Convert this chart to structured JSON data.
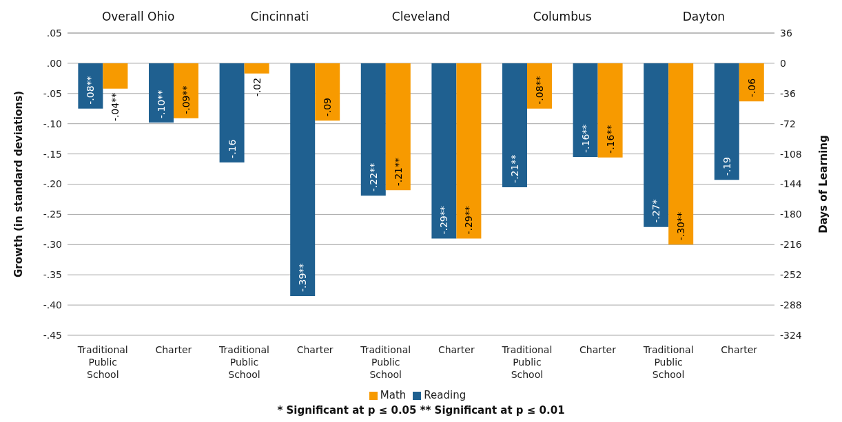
{
  "chart_data": {
    "type": "bar",
    "categories": [
      "Traditional Public School",
      "Charter",
      "Traditional Public School",
      "Charter",
      "Traditional Public School",
      "Charter",
      "Traditional Public School",
      "Charter",
      "Traditional Public School",
      "Charter"
    ],
    "series": [
      {
        "name": "Reading",
        "color": "#1f6090",
        "values": [
          -0.075,
          -0.098,
          -0.164,
          -0.385,
          -0.219,
          -0.29,
          -0.205,
          -0.155,
          -0.271,
          -0.193
        ],
        "value_labels": [
          "-.08**",
          "-.10**",
          "-.16",
          "-.39**",
          "-.22**",
          "-.29**",
          "-.21**",
          "-.16**",
          "-.27*",
          "-.19"
        ]
      },
      {
        "name": "Math",
        "color": "#f79a00",
        "values": [
          -0.042,
          -0.091,
          -0.017,
          -0.095,
          -0.21,
          -0.29,
          -0.075,
          -0.156,
          -0.3,
          -0.063
        ],
        "value_labels": [
          "-.04**",
          "-.09**",
          "-.02",
          "-.09",
          "-.21**",
          "-.29**",
          "-.08**",
          "-.16**",
          "-.30**",
          "-.06"
        ]
      }
    ],
    "ylabel": "Growth (in standard deviations)",
    "y2label": "Days of Learning",
    "ylim": [
      -0.45,
      0.05
    ],
    "yticks": [
      {
        "value": 0.05,
        "label": ".05"
      },
      {
        "value": 0,
        "label": ".00"
      },
      {
        "value": -0.05,
        "label": "-.05"
      },
      {
        "value": -0.1,
        "label": "-.10"
      },
      {
        "value": -0.15,
        "label": "-.15"
      },
      {
        "value": -0.2,
        "label": "-.20"
      },
      {
        "value": -0.25,
        "label": "-.25"
      },
      {
        "value": -0.3,
        "label": "-.30"
      },
      {
        "value": -0.35,
        "label": "-.35"
      },
      {
        "value": -0.4,
        "label": "-.40"
      },
      {
        "value": -0.45,
        "label": "-.45"
      }
    ],
    "y2lim": [
      -324,
      36
    ],
    "y2ticks": [
      36,
      0,
      -36,
      -72,
      -108,
      -144,
      -180,
      -216,
      -252,
      -288,
      -324
    ],
    "grid": "y",
    "legend": "bottom",
    "annotations": [
      "Overall Ohio",
      "Cincinnati",
      "Cleveland",
      "Columbus",
      "Dayton",
      "* Significant at p ≤ 0.05 ** Significant at p ≤ 0.01"
    ]
  }
}
